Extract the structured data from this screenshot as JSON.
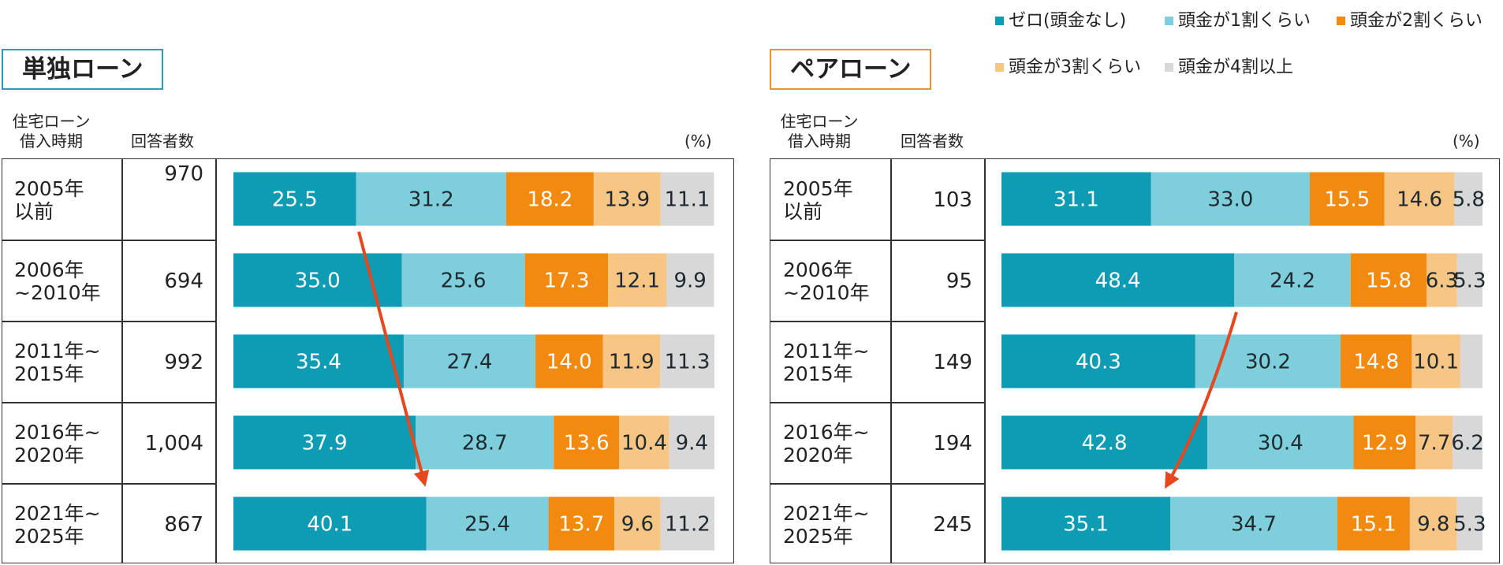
{
  "legend": {
    "items": [
      {
        "label": "ゼロ(頭金なし)",
        "color": "#0e9bb4"
      },
      {
        "label": "頭金が1割くらい",
        "color": "#7ecfdb"
      },
      {
        "label": "頭金が2割くらい",
        "color": "#f28a0f"
      },
      {
        "label": "頭金が3割くらい",
        "color": "#f7c584"
      },
      {
        "label": "頭金が4割以上",
        "color": "#d8d8d8"
      }
    ]
  },
  "headers": {
    "period_line1": "住宅ローン",
    "period_line2": "借入時期",
    "respondents": "回答者数",
    "unit": "(%)"
  },
  "arrow_color": "#e5481e",
  "chart_data": [
    {
      "type": "bar",
      "orientation": "horizontal",
      "stacked": true,
      "title": "単独ローン",
      "title_color": "#2a9db0",
      "unit": "%",
      "xlim": [
        0,
        100
      ],
      "categories": [
        "2005年\n以前",
        "2006年\n~2010年",
        "2011年~\n2015年",
        "2016年~\n2020年",
        "2021年~\n2025年"
      ],
      "respondents": [
        "970",
        "694",
        "992",
        "1,004",
        "867"
      ],
      "series": [
        {
          "name": "ゼロ(頭金なし)",
          "values": [
            25.5,
            35.0,
            35.4,
            37.9,
            40.1
          ],
          "labels": [
            "25.5",
            "35.0",
            "35.4",
            "37.9",
            "40.1"
          ]
        },
        {
          "name": "頭金が1割くらい",
          "values": [
            31.2,
            25.6,
            27.4,
            28.7,
            25.4
          ],
          "labels": [
            "31.2",
            "25.6",
            "27.4",
            "28.7",
            "25.4"
          ]
        },
        {
          "name": "頭金が2割くらい",
          "values": [
            18.2,
            17.3,
            14.0,
            13.6,
            13.7
          ],
          "labels": [
            "18.2",
            "17.3",
            "14.0",
            "13.6",
            "13.7"
          ]
        },
        {
          "name": "頭金が3割くらい",
          "values": [
            13.9,
            12.1,
            11.9,
            10.4,
            9.6
          ],
          "labels": [
            "13.9",
            "12.1",
            "11.9",
            "10.4",
            "9.6"
          ]
        },
        {
          "name": "頭金が4割以上",
          "values": [
            11.1,
            9.9,
            11.3,
            9.4,
            11.2
          ],
          "labels": [
            "11.1",
            "9.9",
            "11.3",
            "9.4",
            "11.2"
          ]
        }
      ],
      "annotation": {
        "type": "arrow",
        "from": "ゼロ(頭金なし) 2005年以前",
        "to": "ゼロ(頭金なし) 2021年~2025年",
        "direction": "down-right"
      }
    },
    {
      "type": "bar",
      "orientation": "horizontal",
      "stacked": true,
      "title": "ペアローン",
      "title_color": "#e8952a",
      "unit": "%",
      "xlim": [
        0,
        100
      ],
      "categories": [
        "2005年\n以前",
        "2006年\n~2010年",
        "2011年~\n2015年",
        "2016年~\n2020年",
        "2021年~\n2025年"
      ],
      "respondents": [
        "103",
        "95",
        "149",
        "194",
        "245"
      ],
      "series": [
        {
          "name": "ゼロ(頭金なし)",
          "values": [
            31.1,
            48.4,
            40.3,
            42.8,
            35.1
          ],
          "labels": [
            "31.1",
            "48.4",
            "40.3",
            "42.8",
            "35.1"
          ]
        },
        {
          "name": "頭金が1割くらい",
          "values": [
            33.0,
            24.2,
            30.2,
            30.4,
            34.7
          ],
          "labels": [
            "33.0",
            "24.2",
            "30.2",
            "30.4",
            "34.7"
          ]
        },
        {
          "name": "頭金が2割くらい",
          "values": [
            15.5,
            15.8,
            14.8,
            12.9,
            15.1
          ],
          "labels": [
            "15.5",
            "15.8",
            "14.8",
            "12.9",
            "15.1"
          ]
        },
        {
          "name": "頭金が3割くらい",
          "values": [
            14.6,
            6.3,
            10.1,
            7.7,
            9.8
          ],
          "labels": [
            "14.6",
            "6.3",
            "10.1",
            "7.7",
            "9.8"
          ]
        },
        {
          "name": "頭金が4割以上",
          "values": [
            5.8,
            5.3,
            4.6,
            6.2,
            5.3
          ],
          "labels": [
            "5.8",
            "5.3",
            "",
            "6.2",
            "5.3"
          ]
        }
      ],
      "annotation": {
        "type": "arrow",
        "from": "ゼロ(頭金なし) 2006年~2010年",
        "to": "ゼロ(頭金なし) 2021年~2025年",
        "direction": "down-left"
      }
    }
  ]
}
